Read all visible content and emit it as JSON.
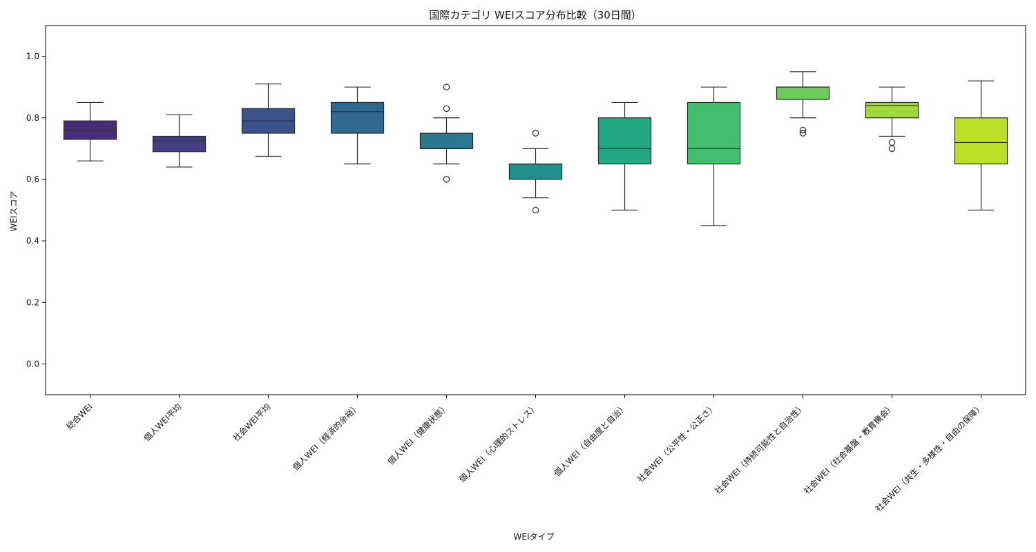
{
  "chart_data": {
    "type": "box",
    "title": "国際カテゴリ WEIスコア分布比較（30日間）",
    "xlabel": "WEIタイプ",
    "ylabel": "WEIスコア",
    "ylim": [
      -0.1,
      1.1
    ],
    "yticks": [
      "0.0",
      "0.2",
      "0.4",
      "0.6",
      "0.8",
      "1.0"
    ],
    "grid": false,
    "categories": [
      "総合WEI",
      "個人WEI平均",
      "社会WEI平均",
      "個人WEI（経済的余裕）",
      "個人WEI（健康状態）",
      "個人WEI（心理的ストレス）",
      "個人WEI（自由度と自治）",
      "社会WEI（公平性・公正さ）",
      "社会WEI（持続可能性と自治性）",
      "社会WEI（社会基盤・教育機会）",
      "社会WEI（共生・多様性・自由の保障）"
    ],
    "boxes": [
      {
        "whisker_low": 0.66,
        "q1": 0.73,
        "median": 0.76,
        "q3": 0.79,
        "whisker_high": 0.85,
        "outliers": []
      },
      {
        "whisker_low": 0.64,
        "q1": 0.69,
        "median": 0.725,
        "q3": 0.74,
        "whisker_high": 0.81,
        "outliers": []
      },
      {
        "whisker_low": 0.675,
        "q1": 0.75,
        "median": 0.79,
        "q3": 0.83,
        "whisker_high": 0.91,
        "outliers": []
      },
      {
        "whisker_low": 0.65,
        "q1": 0.75,
        "median": 0.82,
        "q3": 0.85,
        "whisker_high": 0.9,
        "outliers": []
      },
      {
        "whisker_low": 0.65,
        "q1": 0.7,
        "median": 0.7,
        "q3": 0.75,
        "whisker_high": 0.8,
        "outliers": [
          0.9,
          0.83,
          0.6
        ]
      },
      {
        "whisker_low": 0.54,
        "q1": 0.6,
        "median": 0.65,
        "q3": 0.65,
        "whisker_high": 0.7,
        "outliers": [
          0.75,
          0.5
        ]
      },
      {
        "whisker_low": 0.5,
        "q1": 0.65,
        "median": 0.7,
        "q3": 0.8,
        "whisker_high": 0.85,
        "outliers": []
      },
      {
        "whisker_low": 0.45,
        "q1": 0.65,
        "median": 0.7,
        "q3": 0.85,
        "whisker_high": 0.9,
        "outliers": []
      },
      {
        "whisker_low": 0.8,
        "q1": 0.86,
        "median": 0.9,
        "q3": 0.9,
        "whisker_high": 0.95,
        "outliers": [
          0.76,
          0.75
        ]
      },
      {
        "whisker_low": 0.74,
        "q1": 0.8,
        "median": 0.84,
        "q3": 0.85,
        "whisker_high": 0.9,
        "outliers": [
          0.72,
          0.7
        ]
      },
      {
        "whisker_low": 0.5,
        "q1": 0.65,
        "median": 0.72,
        "q3": 0.8,
        "whisker_high": 0.92,
        "outliers": []
      }
    ],
    "colors": [
      "#472c7a",
      "#433e85",
      "#3b528b",
      "#31688e",
      "#2a788e",
      "#21908c",
      "#22a884",
      "#44bf70",
      "#6ccd5a",
      "#a0da39",
      "#bddf26"
    ]
  }
}
